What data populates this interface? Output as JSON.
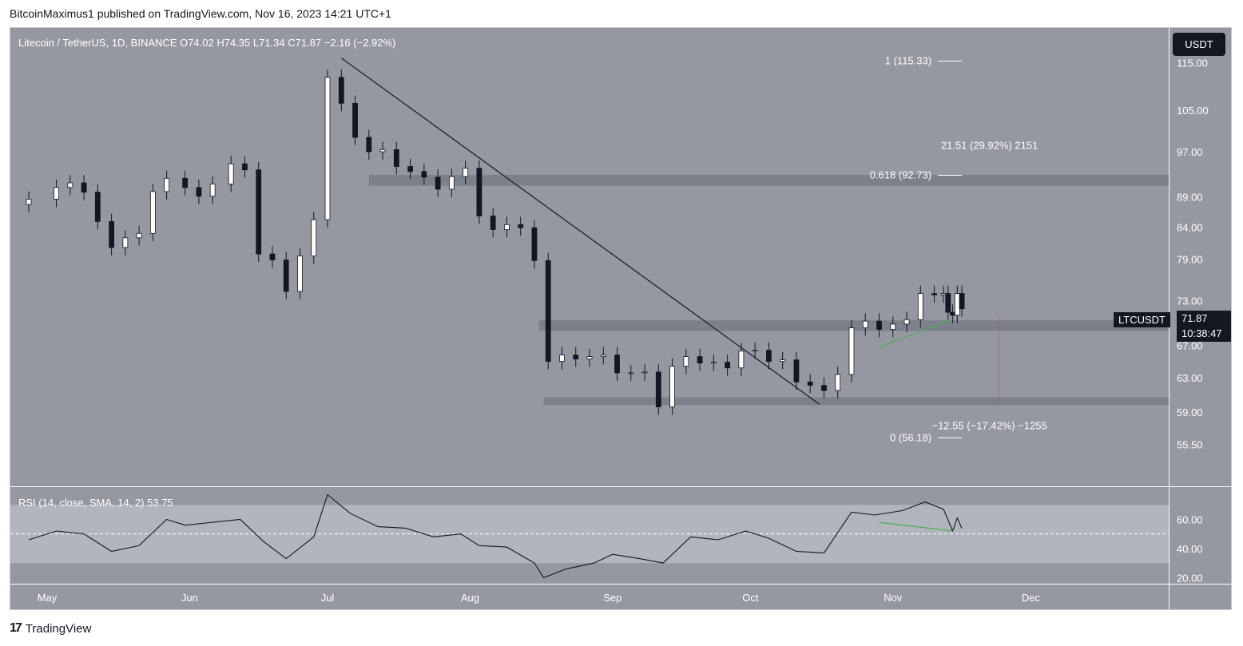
{
  "header": "BitcoinMaximus1 published on TradingView.com, Nov 16, 2023 14:21 UTC+1",
  "legend": {
    "symbol": "Litecoin / TetherUS, 1D, BINANCE",
    "ohlc": "O74.02  H74.35  L71.34  C71.87  −2.16 (−2.92%)"
  },
  "rsi_legend": "RSI (14, close, SMA, 14, 2)  53.75",
  "currency_button": "USDT",
  "price_tag": {
    "symbol": "LTCUSDT",
    "price": "71.87",
    "countdown": "10:38:47"
  },
  "footer": {
    "logo": "17",
    "brand": "TradingView"
  },
  "annotations": {
    "fib_1": "1 (115.33)",
    "fib_0618": "0.618 (92.73)",
    "fib_0": "0 (56.18)",
    "upper_measure": "21.51 (29.92%) 2151",
    "lower_measure": "−12.55 (−17.42%) −1255"
  },
  "colors": {
    "panel_bg": "#9598a1",
    "rsi_band": "#b2b5be",
    "zone": "#787b86",
    "candle_up": "#ffffff",
    "candle_down": "#131722",
    "rsi_divergence": "#4caf50"
  },
  "chart_data": {
    "type": "candlestick",
    "title": "Litecoin / TetherUS, 1D, BINANCE",
    "x_ticks": [
      "May",
      "Jun",
      "Jul",
      "Aug",
      "Sep",
      "Oct",
      "Nov",
      "Dec"
    ],
    "y_ticks": [
      "115.00",
      "105.00",
      "97.00",
      "89.00",
      "84.00",
      "79.00",
      "73.00",
      "67.00",
      "63.00",
      "59.00",
      "55.50"
    ],
    "y_scale": "log",
    "ylim": [
      52.0,
      121.0
    ],
    "close_series": [
      {
        "date": "2023-04-27",
        "close": 88.6
      },
      {
        "date": "2023-05-03",
        "close": 90.6
      },
      {
        "date": "2023-05-06",
        "close": 91.4
      },
      {
        "date": "2023-05-09",
        "close": 89.8
      },
      {
        "date": "2023-05-12",
        "close": 84.9
      },
      {
        "date": "2023-05-15",
        "close": 80.8
      },
      {
        "date": "2023-05-18",
        "close": 82.3
      },
      {
        "date": "2023-05-21",
        "close": 83.0
      },
      {
        "date": "2023-05-24",
        "close": 89.9
      },
      {
        "date": "2023-05-27",
        "close": 92.2
      },
      {
        "date": "2023-05-31",
        "close": 90.6
      },
      {
        "date": "2023-06-03",
        "close": 89.1
      },
      {
        "date": "2023-06-06",
        "close": 91.2
      },
      {
        "date": "2023-06-10",
        "close": 94.8
      },
      {
        "date": "2023-06-13",
        "close": 93.7
      },
      {
        "date": "2023-06-16",
        "close": 79.8
      },
      {
        "date": "2023-06-19",
        "close": 78.9
      },
      {
        "date": "2023-06-22",
        "close": 74.3
      },
      {
        "date": "2023-06-25",
        "close": 79.5
      },
      {
        "date": "2023-06-28",
        "close": 85.2
      },
      {
        "date": "2023-07-01",
        "close": 111.8
      },
      {
        "date": "2023-07-04",
        "close": 106.4
      },
      {
        "date": "2023-07-07",
        "close": 99.7
      },
      {
        "date": "2023-07-10",
        "close": 97.0
      },
      {
        "date": "2023-07-13",
        "close": 97.4
      },
      {
        "date": "2023-07-16",
        "close": 94.3
      },
      {
        "date": "2023-07-19",
        "close": 93.4
      },
      {
        "date": "2023-07-22",
        "close": 92.4
      },
      {
        "date": "2023-07-25",
        "close": 90.3
      },
      {
        "date": "2023-07-28",
        "close": 92.5
      },
      {
        "date": "2023-07-31",
        "close": 94.0
      },
      {
        "date": "2023-08-03",
        "close": 85.8
      },
      {
        "date": "2023-08-06",
        "close": 83.6
      },
      {
        "date": "2023-08-09",
        "close": 84.4
      },
      {
        "date": "2023-08-12",
        "close": 83.9
      },
      {
        "date": "2023-08-15",
        "close": 78.8
      },
      {
        "date": "2023-08-18",
        "close": 65.0
      },
      {
        "date": "2023-08-21",
        "close": 65.8
      },
      {
        "date": "2023-08-24",
        "close": 65.3
      },
      {
        "date": "2023-08-27",
        "close": 65.6
      },
      {
        "date": "2023-08-30",
        "close": 65.8
      },
      {
        "date": "2023-09-02",
        "close": 63.6
      },
      {
        "date": "2023-09-05",
        "close": 63.6
      },
      {
        "date": "2023-09-08",
        "close": 63.7
      },
      {
        "date": "2023-09-11",
        "close": 59.6
      },
      {
        "date": "2023-09-14",
        "close": 64.4
      },
      {
        "date": "2023-09-17",
        "close": 65.6
      },
      {
        "date": "2023-09-20",
        "close": 64.8
      },
      {
        "date": "2023-09-23",
        "close": 64.9
      },
      {
        "date": "2023-09-26",
        "close": 64.2
      },
      {
        "date": "2023-09-29",
        "close": 66.3
      },
      {
        "date": "2023-10-02",
        "close": 66.4
      },
      {
        "date": "2023-10-05",
        "close": 65.0
      },
      {
        "date": "2023-10-08",
        "close": 65.2
      },
      {
        "date": "2023-10-11",
        "close": 62.5
      },
      {
        "date": "2023-10-14",
        "close": 62.1
      },
      {
        "date": "2023-10-17",
        "close": 61.5
      },
      {
        "date": "2023-10-20",
        "close": 63.4
      },
      {
        "date": "2023-10-23",
        "close": 69.3
      },
      {
        "date": "2023-10-26",
        "close": 70.2
      },
      {
        "date": "2023-10-29",
        "close": 69.1
      },
      {
        "date": "2023-11-01",
        "close": 69.8
      },
      {
        "date": "2023-11-04",
        "close": 70.4
      },
      {
        "date": "2023-11-07",
        "close": 74.0
      },
      {
        "date": "2023-11-10",
        "close": 73.8
      },
      {
        "date": "2023-11-12",
        "close": 74.0
      },
      {
        "date": "2023-11-13",
        "close": 71.4
      },
      {
        "date": "2023-11-14",
        "close": 71.0
      },
      {
        "date": "2023-11-15",
        "close": 74.0
      },
      {
        "date": "2023-11-16",
        "close": 71.87
      }
    ],
    "last": {
      "open": 74.02,
      "high": 74.35,
      "low": 71.34,
      "close": 71.87,
      "change": -2.16,
      "change_pct": -2.92
    },
    "fib_levels": [
      {
        "level": "1",
        "price": 115.33
      },
      {
        "level": "0.618",
        "price": 92.73
      },
      {
        "level": "0",
        "price": 56.18
      }
    ],
    "zones": [
      {
        "from": "2023-07-10",
        "to": "2023-12-31",
        "low": 90.9,
        "high": 92.8
      },
      {
        "from": "2023-08-16",
        "to": "2023-12-31",
        "low": 68.9,
        "high": 70.3
      },
      {
        "from": "2023-08-17",
        "to": "2023-12-31",
        "low": 59.8,
        "high": 60.7
      }
    ],
    "trendline": {
      "from": {
        "date": "2023-07-04",
        "price": 116.0
      },
      "to": {
        "date": "2023-10-16",
        "price": 59.9
      }
    },
    "rsi": {
      "period": 14,
      "value": 53.75,
      "y_ticks": [
        "60.00",
        "40.00",
        "20.00"
      ],
      "ylim": [
        18,
        80
      ],
      "bands": [
        30,
        70
      ],
      "midline": 50,
      "series": [
        {
          "date": "2023-04-27",
          "rsi": 46
        },
        {
          "date": "2023-05-03",
          "rsi": 52
        },
        {
          "date": "2023-05-09",
          "rsi": 50
        },
        {
          "date": "2023-05-15",
          "rsi": 38
        },
        {
          "date": "2023-05-21",
          "rsi": 42
        },
        {
          "date": "2023-05-27",
          "rsi": 60
        },
        {
          "date": "2023-05-31",
          "rsi": 56
        },
        {
          "date": "2023-06-06",
          "rsi": 58
        },
        {
          "date": "2023-06-12",
          "rsi": 60
        },
        {
          "date": "2023-06-17",
          "rsi": 45
        },
        {
          "date": "2023-06-22",
          "rsi": 33
        },
        {
          "date": "2023-06-28",
          "rsi": 48
        },
        {
          "date": "2023-07-01",
          "rsi": 77
        },
        {
          "date": "2023-07-06",
          "rsi": 64
        },
        {
          "date": "2023-07-12",
          "rsi": 55
        },
        {
          "date": "2023-07-18",
          "rsi": 54
        },
        {
          "date": "2023-07-24",
          "rsi": 48
        },
        {
          "date": "2023-07-30",
          "rsi": 50
        },
        {
          "date": "2023-08-03",
          "rsi": 42
        },
        {
          "date": "2023-08-09",
          "rsi": 41
        },
        {
          "date": "2023-08-15",
          "rsi": 30
        },
        {
          "date": "2023-08-17",
          "rsi": 20
        },
        {
          "date": "2023-08-22",
          "rsi": 26
        },
        {
          "date": "2023-08-28",
          "rsi": 30
        },
        {
          "date": "2023-09-01",
          "rsi": 36
        },
        {
          "date": "2023-09-07",
          "rsi": 33
        },
        {
          "date": "2023-09-12",
          "rsi": 30
        },
        {
          "date": "2023-09-18",
          "rsi": 48
        },
        {
          "date": "2023-09-24",
          "rsi": 46
        },
        {
          "date": "2023-09-30",
          "rsi": 52
        },
        {
          "date": "2023-10-05",
          "rsi": 47
        },
        {
          "date": "2023-10-11",
          "rsi": 38
        },
        {
          "date": "2023-10-17",
          "rsi": 37
        },
        {
          "date": "2023-10-23",
          "rsi": 65
        },
        {
          "date": "2023-10-28",
          "rsi": 63
        },
        {
          "date": "2023-11-03",
          "rsi": 66
        },
        {
          "date": "2023-11-08",
          "rsi": 72
        },
        {
          "date": "2023-11-12",
          "rsi": 67
        },
        {
          "date": "2023-11-14",
          "rsi": 52
        },
        {
          "date": "2023-11-15",
          "rsi": 61
        },
        {
          "date": "2023-11-16",
          "rsi": 53.75
        }
      ],
      "divergence": {
        "from": {
          "date": "2023-10-29",
          "rsi": 58
        },
        "to": {
          "date": "2023-11-14",
          "rsi": 52
        }
      }
    },
    "price_divergence": {
      "from": {
        "date": "2023-10-29",
        "price": 66.8
      },
      "to": {
        "date": "2023-11-14",
        "price": 70.5
      }
    }
  }
}
